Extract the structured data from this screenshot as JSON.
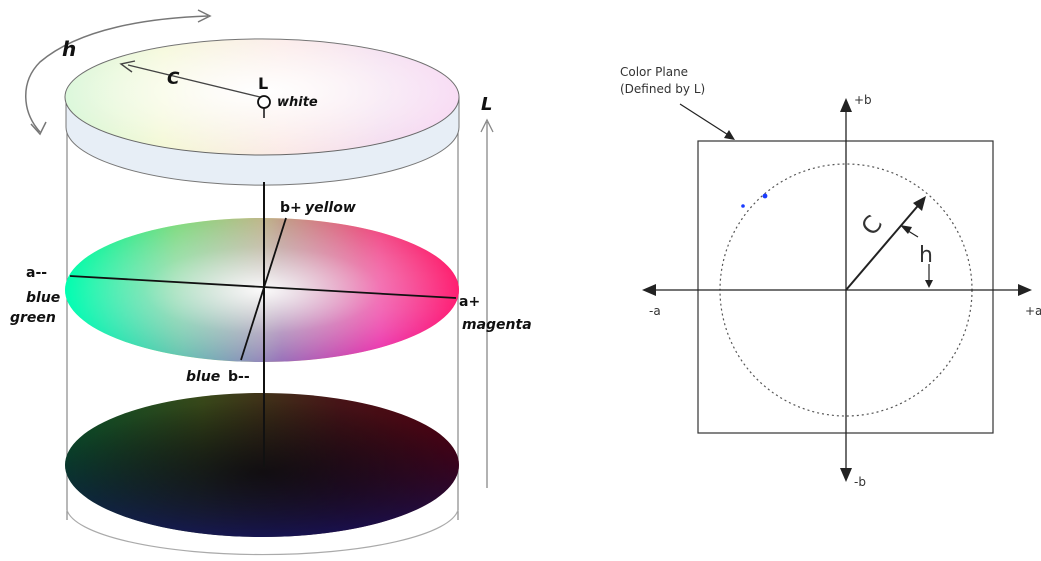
{
  "cylinder": {
    "labels": {
      "hue": "h",
      "chroma": "C",
      "lightness_axis": "L",
      "lightness_point": "L",
      "white": "white",
      "b_plus": "b+",
      "yellow": "yellow",
      "a_minus": "a--",
      "blue_line1": "blue",
      "green_line2": "green",
      "a_plus": "a+",
      "magenta": "magenta",
      "blue_bottom": "blue",
      "b_minus": "b--"
    }
  },
  "color_plane": {
    "caption_line1": "Color Plane",
    "caption_line2": "(Defined by L)",
    "axis_plus_b": "+b",
    "axis_minus_b": "-b",
    "axis_minus_a": "-a",
    "axis_plus_a": "+a",
    "chroma": "C",
    "hue": "h"
  },
  "colors": {
    "line": "#222222",
    "dot_blue": "#1a3cff"
  }
}
